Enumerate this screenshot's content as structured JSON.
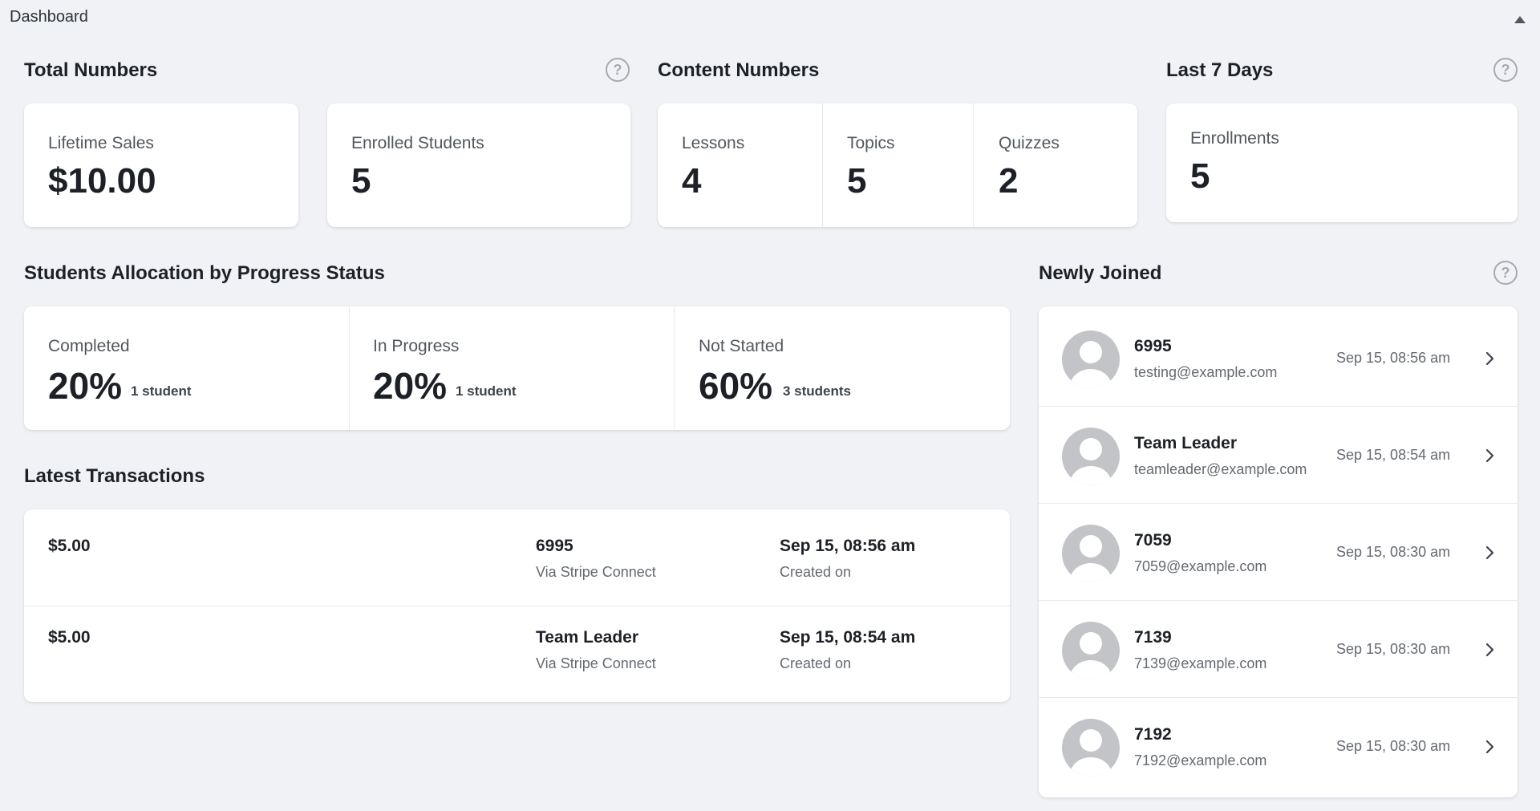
{
  "header": {
    "title": "Dashboard"
  },
  "sections": {
    "total_numbers": "Total Numbers",
    "content_numbers": "Content Numbers",
    "last_7_days": "Last 7 Days",
    "allocation": "Students Allocation by Progress Status",
    "newly_joined": "Newly Joined",
    "latest_transactions": "Latest Transactions"
  },
  "help_glyph": "?",
  "total_numbers": {
    "lifetime_sales": {
      "label": "Lifetime Sales",
      "value": "$10.00"
    },
    "enrolled_students": {
      "label": "Enrolled Students",
      "value": "5"
    }
  },
  "content_numbers": {
    "lessons": {
      "label": "Lessons",
      "value": "4"
    },
    "topics": {
      "label": "Topics",
      "value": "5"
    },
    "quizzes": {
      "label": "Quizzes",
      "value": "2"
    }
  },
  "last_7_days": {
    "enrollments": {
      "label": "Enrollments",
      "value": "5"
    }
  },
  "allocation": {
    "completed": {
      "label": "Completed",
      "percent": "20%",
      "count": "1 student"
    },
    "in_progress": {
      "label": "In Progress",
      "percent": "20%",
      "count": "1 student"
    },
    "not_started": {
      "label": "Not Started",
      "percent": "60%",
      "count": "3 students"
    }
  },
  "transactions": [
    {
      "amount": "$5.00",
      "name": "6995",
      "via": "Via Stripe Connect",
      "date": "Sep 15, 08:56 am",
      "created": "Created on"
    },
    {
      "amount": "$5.00",
      "name": "Team Leader",
      "via": "Via Stripe Connect",
      "date": "Sep 15, 08:54 am",
      "created": "Created on"
    }
  ],
  "newly_joined": [
    {
      "name": "6995",
      "email": "testing@example.com",
      "time": "Sep 15, 08:56 am"
    },
    {
      "name": "Team Leader",
      "email": "teamleader@example.com",
      "time": "Sep 15, 08:54 am"
    },
    {
      "name": "7059",
      "email": "7059@example.com",
      "time": "Sep 15, 08:30 am"
    },
    {
      "name": "7139",
      "email": "7139@example.com",
      "time": "Sep 15, 08:30 am"
    },
    {
      "name": "7192",
      "email": "7192@example.com",
      "time": "Sep 15, 08:30 am"
    }
  ],
  "colors": {
    "background": "#f0f2f5",
    "card": "#ffffff",
    "text": "#1d2127",
    "muted": "#646970",
    "avatar": "#c3c4c7"
  },
  "icons": {
    "help": "question-circle-icon",
    "collapse": "caret-up-icon",
    "row_arrow": "chevron-right-icon",
    "avatar": "user-silhouette-icon"
  }
}
